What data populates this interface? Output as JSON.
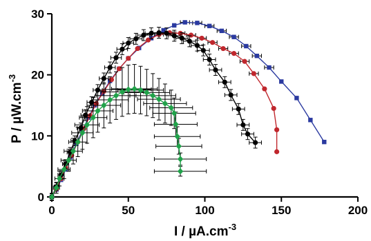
{
  "chart_data": {
    "type": "scatter",
    "xlabel": "I / µA.cm",
    "xlabel_sup": "-3",
    "ylabel": "P / µW.cm",
    "ylabel_sup": "-3",
    "xlim": [
      0,
      200
    ],
    "ylim": [
      0,
      30
    ],
    "xticks": [
      "0",
      "50",
      "100",
      "150",
      "200"
    ],
    "yticks": [
      "0",
      "10",
      "20",
      "30"
    ],
    "grid": false,
    "legend": "none",
    "series": [
      {
        "color": "#2b3aa0",
        "marker": "square",
        "points": [
          {
            "x": 0,
            "y": 0
          },
          {
            "x": 3,
            "y": 1.2
          },
          {
            "x": 6,
            "y": 2.8
          },
          {
            "x": 9,
            "y": 4.5
          },
          {
            "x": 12,
            "y": 6.5
          },
          {
            "x": 16,
            "y": 8.7
          },
          {
            "x": 20,
            "y": 10.9
          },
          {
            "x": 24,
            "y": 13.0
          },
          {
            "x": 28,
            "y": 15.0
          },
          {
            "x": 33,
            "y": 17.0
          },
          {
            "x": 38,
            "y": 19.0
          },
          {
            "x": 44,
            "y": 21.0
          },
          {
            "x": 50,
            "y": 22.7
          },
          {
            "x": 57,
            "y": 24.4
          },
          {
            "x": 65,
            "y": 26.0
          },
          {
            "x": 73,
            "y": 27.3
          },
          {
            "x": 80,
            "y": 28.1
          },
          {
            "x": 87,
            "y": 28.6,
            "xerr": 3
          },
          {
            "x": 95,
            "y": 28.5,
            "xerr": 3
          },
          {
            "x": 103,
            "y": 28.0,
            "xerr": 3
          },
          {
            "x": 111,
            "y": 27.2,
            "xerr": 3
          },
          {
            "x": 119,
            "y": 26.2,
            "xerr": 3
          },
          {
            "x": 127,
            "y": 24.7,
            "xerr": 3
          },
          {
            "x": 134,
            "y": 23.1,
            "xerr": 3
          },
          {
            "x": 142,
            "y": 21.2,
            "xerr": 3
          },
          {
            "x": 150,
            "y": 18.9
          },
          {
            "x": 160,
            "y": 16.2
          },
          {
            "x": 169,
            "y": 12.6
          },
          {
            "x": 178,
            "y": 9.0
          }
        ]
      },
      {
        "color": "#c0272d",
        "marker": "circle",
        "points": [
          {
            "x": 0,
            "y": 0
          },
          {
            "x": 3,
            "y": 1.3
          },
          {
            "x": 6,
            "y": 3.0
          },
          {
            "x": 9,
            "y": 4.8
          },
          {
            "x": 13,
            "y": 6.8
          },
          {
            "x": 17,
            "y": 9.0
          },
          {
            "x": 21,
            "y": 11.2
          },
          {
            "x": 25,
            "y": 13.3
          },
          {
            "x": 29,
            "y": 15.3
          },
          {
            "x": 34,
            "y": 17.3
          },
          {
            "x": 39,
            "y": 19.2
          },
          {
            "x": 44,
            "y": 21.0
          },
          {
            "x": 50,
            "y": 22.7
          },
          {
            "x": 56,
            "y": 24.3
          },
          {
            "x": 63,
            "y": 25.7
          },
          {
            "x": 70,
            "y": 26.6,
            "xerr": 3
          },
          {
            "x": 77,
            "y": 26.9,
            "xerr": 3
          },
          {
            "x": 84,
            "y": 26.8,
            "xerr": 3
          },
          {
            "x": 91,
            "y": 26.5,
            "xerr": 3
          },
          {
            "x": 98,
            "y": 26.0,
            "xerr": 3
          },
          {
            "x": 105,
            "y": 25.3,
            "xerr": 3
          },
          {
            "x": 112,
            "y": 24.3,
            "xerr": 3
          },
          {
            "x": 119,
            "y": 23.5,
            "xerr": 3
          },
          {
            "x": 126,
            "y": 22.2,
            "xerr": 3
          },
          {
            "x": 132,
            "y": 20.2,
            "xerr": 3
          },
          {
            "x": 139,
            "y": 17.7
          },
          {
            "x": 145,
            "y": 14.5
          },
          {
            "x": 147,
            "y": 11.0
          },
          {
            "x": 147,
            "y": 7.4
          }
        ]
      },
      {
        "color": "#000000",
        "marker": "circle",
        "points": [
          {
            "x": 0,
            "y": 0,
            "xerr": 1,
            "yerr": 0.5
          },
          {
            "x": 3,
            "y": 1.7,
            "xerr": 1.5,
            "yerr": 0.6
          },
          {
            "x": 6,
            "y": 3.6,
            "xerr": 2,
            "yerr": 0.7
          },
          {
            "x": 9,
            "y": 5.4,
            "xerr": 2,
            "yerr": 0.7
          },
          {
            "x": 12,
            "y": 7.3,
            "xerr": 2,
            "yerr": 0.8
          },
          {
            "x": 15,
            "y": 9.2,
            "xerr": 2.5,
            "yerr": 0.8
          },
          {
            "x": 19,
            "y": 11.3,
            "xerr": 2.5,
            "yerr": 0.8
          },
          {
            "x": 22,
            "y": 13.4,
            "xerr": 3,
            "yerr": 0.9
          },
          {
            "x": 26,
            "y": 15.5,
            "xerr": 3,
            "yerr": 0.9
          },
          {
            "x": 30,
            "y": 17.5,
            "xerr": 3,
            "yerr": 0.9
          },
          {
            "x": 34,
            "y": 19.4,
            "xerr": 3,
            "yerr": 0.9
          },
          {
            "x": 38,
            "y": 21.2,
            "xerr": 3.5,
            "yerr": 0.9
          },
          {
            "x": 42,
            "y": 22.8,
            "xerr": 3.5,
            "yerr": 0.9
          },
          {
            "x": 46,
            "y": 24.2,
            "xerr": 3.5,
            "yerr": 0.9
          },
          {
            "x": 50,
            "y": 25.2,
            "xerr": 3.5,
            "yerr": 0.9
          },
          {
            "x": 55,
            "y": 25.9,
            "xerr": 4,
            "yerr": 0.9
          },
          {
            "x": 60,
            "y": 26.5,
            "xerr": 4,
            "yerr": 0.9
          },
          {
            "x": 65,
            "y": 26.8,
            "xerr": 4,
            "yerr": 0.9
          },
          {
            "x": 70,
            "y": 26.9,
            "xerr": 4,
            "yerr": 0.9
          },
          {
            "x": 75,
            "y": 26.8,
            "xerr": 4,
            "yerr": 0.9
          },
          {
            "x": 80,
            "y": 26.4,
            "xerr": 4,
            "yerr": 0.9
          },
          {
            "x": 85,
            "y": 26.0,
            "xerr": 4,
            "yerr": 0.9
          },
          {
            "x": 90,
            "y": 25.5,
            "xerr": 4,
            "yerr": 0.9
          },
          {
            "x": 95,
            "y": 24.8,
            "xerr": 4,
            "yerr": 0.9
          },
          {
            "x": 99,
            "y": 24.0,
            "xerr": 4,
            "yerr": 0.9
          },
          {
            "x": 103,
            "y": 22.5,
            "xerr": 4,
            "yerr": 0.9
          },
          {
            "x": 107,
            "y": 20.8,
            "xerr": 4,
            "yerr": 0.9
          },
          {
            "x": 113,
            "y": 18.8,
            "xerr": 4,
            "yerr": 0.9
          },
          {
            "x": 117,
            "y": 16.7,
            "xerr": 4,
            "yerr": 0.9
          },
          {
            "x": 122,
            "y": 14.4,
            "xerr": 4,
            "yerr": 0.9
          },
          {
            "x": 125,
            "y": 11.8,
            "xerr": 4,
            "yerr": 0.9
          },
          {
            "x": 128,
            "y": 10.3,
            "xerr": 4,
            "yerr": 0.9
          },
          {
            "x": 133,
            "y": 8.9,
            "xerr": 4,
            "yerr": 0.9
          }
        ]
      },
      {
        "color": "#21a24a",
        "marker": "diamond",
        "points": [
          {
            "x": 0,
            "y": 0,
            "xerr": 1,
            "yerr": 0.6
          },
          {
            "x": 3,
            "y": 1.5,
            "xerr": 2,
            "yerr": 0.9
          },
          {
            "x": 5,
            "y": 3.0,
            "xerr": 3,
            "yerr": 1.2
          },
          {
            "x": 8,
            "y": 4.5,
            "xerr": 4,
            "yerr": 1.5
          },
          {
            "x": 11,
            "y": 6.0,
            "xerr": 5,
            "yerr": 1.8
          },
          {
            "x": 14,
            "y": 7.5,
            "xerr": 6,
            "yerr": 2.1
          },
          {
            "x": 17,
            "y": 9.0,
            "xerr": 6,
            "yerr": 2.4
          },
          {
            "x": 20,
            "y": 10.5,
            "xerr": 7,
            "yerr": 2.7
          },
          {
            "x": 23,
            "y": 11.8,
            "xerr": 8,
            "yerr": 3.0
          },
          {
            "x": 27,
            "y": 13.0,
            "xerr": 9,
            "yerr": 3.3
          },
          {
            "x": 30,
            "y": 14.1,
            "xerr": 10,
            "yerr": 3.5
          },
          {
            "x": 34,
            "y": 15.0,
            "xerr": 11,
            "yerr": 3.7
          },
          {
            "x": 38,
            "y": 15.9,
            "xerr": 12,
            "yerr": 3.8
          },
          {
            "x": 42,
            "y": 16.6,
            "xerr": 13,
            "yerr": 3.9
          },
          {
            "x": 46,
            "y": 17.2,
            "xerr": 14,
            "yerr": 4.0
          },
          {
            "x": 50,
            "y": 17.6,
            "xerr": 15,
            "yerr": 4.0
          },
          {
            "x": 54,
            "y": 17.7,
            "xerr": 15,
            "yerr": 4.0
          },
          {
            "x": 58,
            "y": 17.5,
            "xerr": 15,
            "yerr": 3.9
          },
          {
            "x": 62,
            "y": 17.1,
            "xerr": 15,
            "yerr": 3.8
          },
          {
            "x": 66,
            "y": 16.6,
            "xerr": 15,
            "yerr": 3.6
          },
          {
            "x": 70,
            "y": 16.0,
            "xerr": 14,
            "yerr": 3.4
          },
          {
            "x": 74,
            "y": 15.3,
            "xerr": 14,
            "yerr": 3.2
          },
          {
            "x": 78,
            "y": 14.6,
            "xerr": 14,
            "yerr": 2.9
          },
          {
            "x": 80,
            "y": 13.7,
            "xerr": 14,
            "yerr": 2.5
          },
          {
            "x": 81,
            "y": 11.9,
            "xerr": 14,
            "yerr": 2.0
          },
          {
            "x": 82,
            "y": 9.9,
            "xerr": 15,
            "yerr": 1.6
          },
          {
            "x": 83,
            "y": 8.3,
            "xerr": 15,
            "yerr": 1.3
          },
          {
            "x": 84,
            "y": 6.2,
            "xerr": 17,
            "yerr": 1.0
          },
          {
            "x": 84,
            "y": 4.2,
            "xerr": 17,
            "yerr": 0.8
          }
        ]
      }
    ]
  }
}
